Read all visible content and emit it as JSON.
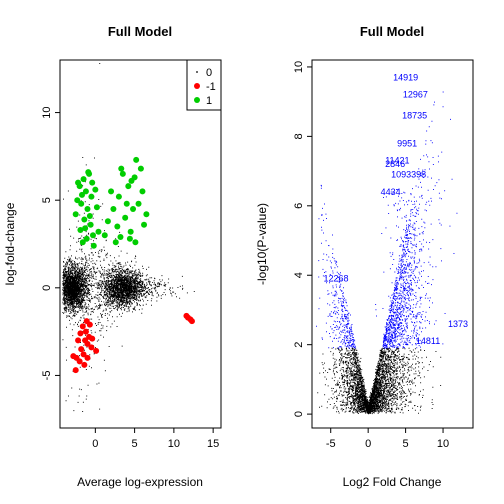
{
  "chart_data": [
    {
      "type": "scatter",
      "title": "Full Model",
      "xlabel": "Average log-expression",
      "ylabel": "log-fold-change",
      "xlim": [
        -4.5,
        16
      ],
      "ylim": [
        -8,
        13
      ],
      "xticks": [
        "0",
        "5",
        "10",
        "15"
      ],
      "yticks": [
        "-5",
        "0",
        "5",
        "10"
      ],
      "grid": false,
      "legend_position": "top-right",
      "legend": [
        {
          "label": "0",
          "color": "#000000"
        },
        {
          "label": "-1",
          "color": "#ff0000"
        },
        {
          "label": "1",
          "color": "#00cd00"
        }
      ],
      "series": [
        {
          "name": "1",
          "color": "#00cd00",
          "points": [
            [
              -1.5,
              6.2
            ],
            [
              -1.2,
              5.5
            ],
            [
              -2.0,
              5.8
            ],
            [
              -0.8,
              6.5
            ],
            [
              -1.8,
              4.8
            ],
            [
              -0.5,
              5.2
            ],
            [
              -1.0,
              4.5
            ],
            [
              -2.3,
              5.0
            ],
            [
              0.2,
              4.6
            ],
            [
              -1.4,
              3.9
            ],
            [
              -0.6,
              3.6
            ],
            [
              -1.9,
              3.3
            ],
            [
              -0.3,
              3.0
            ],
            [
              -1.1,
              2.8
            ],
            [
              -2.5,
              4.2
            ],
            [
              0.0,
              5.6
            ],
            [
              -0.9,
              6.6
            ],
            [
              -1.6,
              2.6
            ],
            [
              -0.2,
              2.4
            ],
            [
              -1.3,
              3.4
            ],
            [
              -0.7,
              4.1
            ],
            [
              -2.2,
              6.0
            ],
            [
              -0.4,
              6.0
            ],
            [
              0.4,
              3.2
            ],
            [
              -1.7,
              5.3
            ],
            [
              1.2,
              3.0
            ],
            [
              2.3,
              4.5
            ],
            [
              3.0,
              5.2
            ],
            [
              3.5,
              6.5
            ],
            [
              4.2,
              5.8
            ],
            [
              5.2,
              7.3
            ],
            [
              5.0,
              6.3
            ],
            [
              6.0,
              5.5
            ],
            [
              4.8,
              4.5
            ],
            [
              3.8,
              4.0
            ],
            [
              2.8,
              3.5
            ],
            [
              4.5,
              3.2
            ],
            [
              5.5,
              4.8
            ],
            [
              6.5,
              4.2
            ],
            [
              3.3,
              6.8
            ],
            [
              2.0,
              5.5
            ],
            [
              1.6,
              3.8
            ],
            [
              4.0,
              4.8
            ],
            [
              5.8,
              6.8
            ],
            [
              4.6,
              6.1
            ],
            [
              3.2,
              2.9
            ],
            [
              5.1,
              2.6
            ],
            [
              2.6,
              2.6
            ],
            [
              4.4,
              2.8
            ],
            [
              6.2,
              3.6
            ]
          ]
        },
        {
          "name": "-1",
          "color": "#ff0000",
          "points": [
            [
              -2.5,
              -4.7
            ],
            [
              -2.0,
              -4.2
            ],
            [
              -1.5,
              -3.8
            ],
            [
              -1.0,
              -3.2
            ],
            [
              -0.8,
              -2.8
            ],
            [
              -1.2,
              -2.5
            ],
            [
              -1.8,
              -3.5
            ],
            [
              -2.2,
              -3.0
            ],
            [
              -1.6,
              -2.2
            ],
            [
              -1.0,
              -4.0
            ],
            [
              -0.5,
              -3.4
            ],
            [
              -2.8,
              -3.9
            ],
            [
              -1.4,
              -4.4
            ],
            [
              -0.7,
              -2.1
            ],
            [
              -1.9,
              -2.6
            ],
            [
              0.1,
              -3.6
            ],
            [
              -1.1,
              -1.9
            ],
            [
              -2.4,
              -4.0
            ],
            [
              -0.4,
              -2.9
            ],
            [
              -1.3,
              -3.0
            ],
            [
              11.8,
              -1.7
            ],
            [
              12.1,
              -1.8
            ],
            [
              11.6,
              -1.6
            ],
            [
              12.3,
              -1.9
            ]
          ]
        }
      ]
    },
    {
      "type": "scatter",
      "title": "Full Model",
      "xlabel": "Log2 Fold Change",
      "ylabel": "-log10(P-value)",
      "xlim": [
        -7.5,
        14
      ],
      "ylim": [
        -0.4,
        10.2
      ],
      "xticks": [
        "-5",
        "0",
        "5",
        "10"
      ],
      "yticks": [
        "0",
        "2",
        "4",
        "6",
        "8",
        "10"
      ],
      "grid": false,
      "labeled_points": [
        {
          "label": "14919",
          "x": 5.0,
          "y": 9.7
        },
        {
          "label": "12967",
          "x": 6.3,
          "y": 9.2
        },
        {
          "label": "18735",
          "x": 6.2,
          "y": 8.6
        },
        {
          "label": "9951",
          "x": 5.2,
          "y": 7.8
        },
        {
          "label": "11421",
          "x": 3.9,
          "y": 7.3
        },
        {
          "label": "2846",
          "x": 3.6,
          "y": 7.2
        },
        {
          "label": "1093398",
          "x": 5.4,
          "y": 6.9
        },
        {
          "label": "4434",
          "x": 3.0,
          "y": 6.4
        },
        {
          "label": "12268",
          "x": -4.3,
          "y": 3.9
        },
        {
          "label": "1373",
          "x": 12.0,
          "y": 2.6
        },
        {
          "label": "14811",
          "x": 8.0,
          "y": 2.1
        }
      ]
    }
  ]
}
